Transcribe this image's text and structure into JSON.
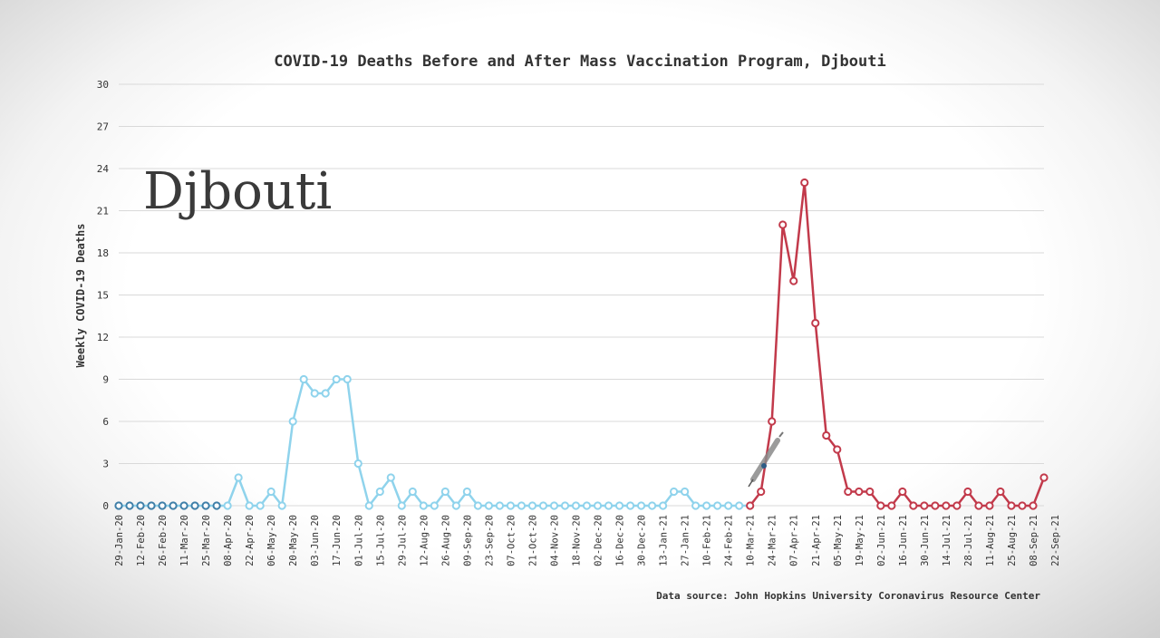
{
  "chart_data": {
    "type": "line",
    "title": "COVID-19 Deaths Before and After Mass Vaccination Program, Djbouti",
    "overlay_label": "Djbouti",
    "xlabel": "",
    "ylabel": "Weekly COVID-19 Deaths",
    "ylim": [
      0,
      30
    ],
    "yticks": [
      0,
      3,
      6,
      9,
      12,
      15,
      18,
      21,
      24,
      27,
      30
    ],
    "grid": true,
    "source": "Data source: John Hopkins University Coronavirus Resource Center",
    "x_tick_labels": [
      "29-Jan-20",
      "12-Feb-20",
      "26-Feb-20",
      "11-Mar-20",
      "25-Mar-20",
      "08-Apr-20",
      "22-Apr-20",
      "06-May-20",
      "20-May-20",
      "03-Jun-20",
      "17-Jun-20",
      "01-Jul-20",
      "15-Jul-20",
      "29-Jul-20",
      "12-Aug-20",
      "26-Aug-20",
      "09-Sep-20",
      "23-Sep-20",
      "07-Oct-20",
      "21-Oct-20",
      "04-Nov-20",
      "18-Nov-20",
      "02-Dec-20",
      "16-Dec-20",
      "30-Dec-20",
      "13-Jan-21",
      "27-Jan-21",
      "10-Feb-21",
      "24-Feb-21",
      "10-Mar-21",
      "24-Mar-21",
      "07-Apr-21",
      "21-Apr-21",
      "05-May-21",
      "19-May-21",
      "02-Jun-21",
      "16-Jun-21",
      "30-Jun-21",
      "14-Jul-21",
      "28-Jul-21",
      "11-Aug-21",
      "25-Aug-21",
      "08-Sep-21",
      "22-Sep-21"
    ],
    "values": [
      0,
      0,
      0,
      0,
      0,
      0,
      0,
      0,
      0,
      0,
      0,
      2,
      0,
      0,
      1,
      0,
      6,
      9,
      8,
      8,
      9,
      9,
      3,
      0,
      1,
      2,
      0,
      1,
      0,
      0,
      1,
      0,
      1,
      0,
      0,
      0,
      0,
      0,
      0,
      0,
      0,
      0,
      0,
      0,
      0,
      0,
      0,
      0,
      0,
      0,
      0,
      1,
      1,
      0,
      0,
      0,
      0,
      0,
      0,
      1,
      6,
      20,
      16,
      23,
      13,
      5,
      4,
      1,
      1,
      1,
      0,
      0,
      1,
      0,
      0,
      0,
      0,
      0,
      1,
      0,
      0,
      1,
      0,
      0,
      0,
      2
    ],
    "vaccination_index": 58,
    "colors": {
      "before": "#8fd3ec",
      "before_dark": "#3f7fa8",
      "after": "#c23a4b",
      "grid": "#d9d9d9"
    }
  }
}
